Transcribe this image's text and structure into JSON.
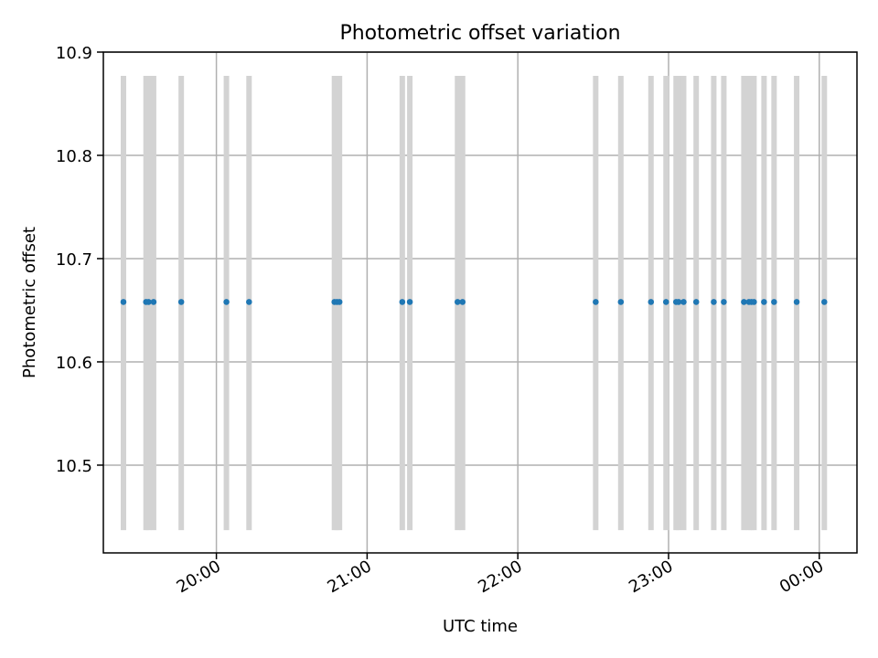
{
  "chart_data": {
    "type": "scatter",
    "title": "Photometric offset variation",
    "xlabel": "UTC time",
    "ylabel": "Photometric offset",
    "x_axis": {
      "type": "time",
      "range": [
        "19:15",
        "00:15"
      ],
      "ticks": [
        "20:00",
        "21:00",
        "22:00",
        "23:00",
        "00:00"
      ]
    },
    "y_axis": {
      "range": [
        10.415,
        10.9
      ],
      "ticks": [
        10.5,
        10.6,
        10.7,
        10.8,
        10.9
      ],
      "tick_labels": [
        "10.5",
        "10.6",
        "10.7",
        "10.8",
        "10.9"
      ]
    },
    "grid": true,
    "colors": {
      "points": "#1f77b4",
      "error_bars": "#d3d3d3"
    },
    "series": [
      {
        "error_bar_range": [
          10.437,
          10.877
        ],
        "x": [
          "19:23",
          "19:32",
          "19:33",
          "19:35",
          "19:46",
          "20:04",
          "20:13",
          "20:47",
          "20:48",
          "20:49",
          "21:14",
          "21:17",
          "21:36",
          "21:38",
          "22:31",
          "22:41",
          "22:53",
          "22:59",
          "23:03",
          "23:04",
          "23:06",
          "23:11",
          "23:18",
          "23:22",
          "23:30",
          "23:32",
          "23:33",
          "23:34",
          "23:38",
          "23:42",
          "23:51",
          "00:02"
        ],
        "y": [
          10.658,
          10.658,
          10.658,
          10.658,
          10.658,
          10.658,
          10.658,
          10.658,
          10.658,
          10.658,
          10.658,
          10.658,
          10.658,
          10.658,
          10.658,
          10.658,
          10.658,
          10.658,
          10.658,
          10.658,
          10.658,
          10.658,
          10.658,
          10.658,
          10.658,
          10.658,
          10.658,
          10.658,
          10.658,
          10.658,
          10.658,
          10.658
        ]
      }
    ]
  }
}
